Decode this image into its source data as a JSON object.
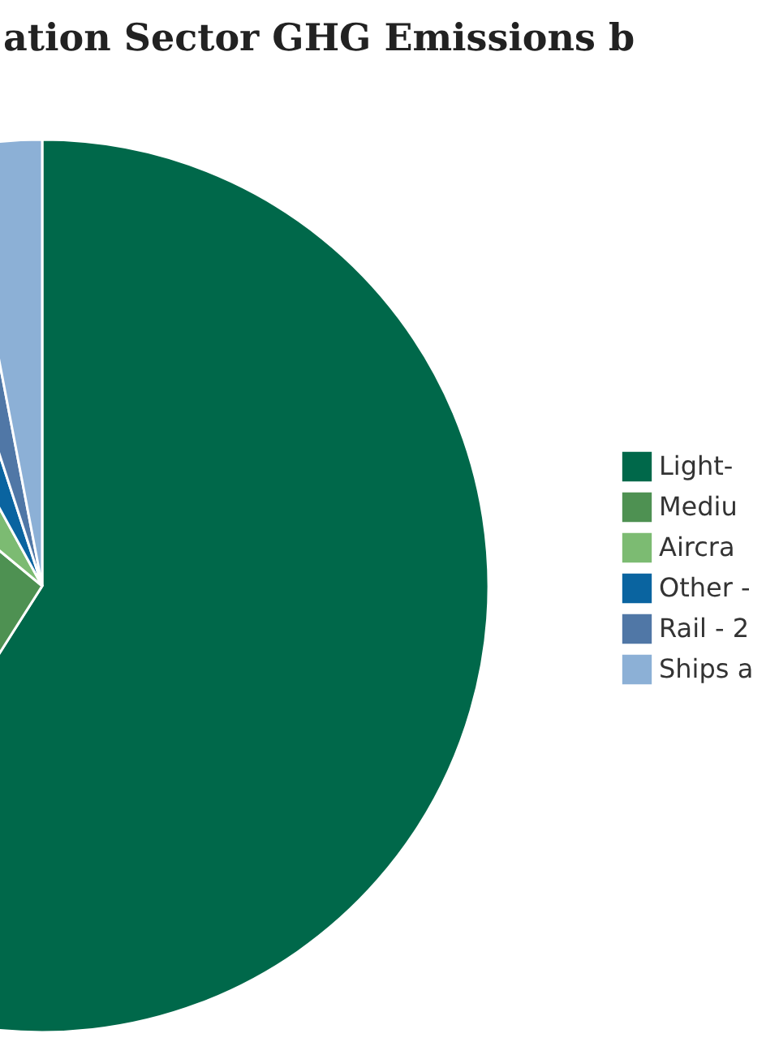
{
  "chart_data": {
    "type": "pie",
    "title": "ation Sector GHG Emissions b",
    "categories": [
      "Light-",
      "Mediu",
      "Aircra",
      "Other -",
      "Rail - 2",
      "Ships a"
    ],
    "values": [
      59,
      27,
      6,
      3,
      2,
      3
    ],
    "colors": [
      "#00684a",
      "#4e9152",
      "#7cbb72",
      "#0a64a0",
      "#5077a6",
      "#8cb0d6"
    ],
    "legend": "right"
  }
}
